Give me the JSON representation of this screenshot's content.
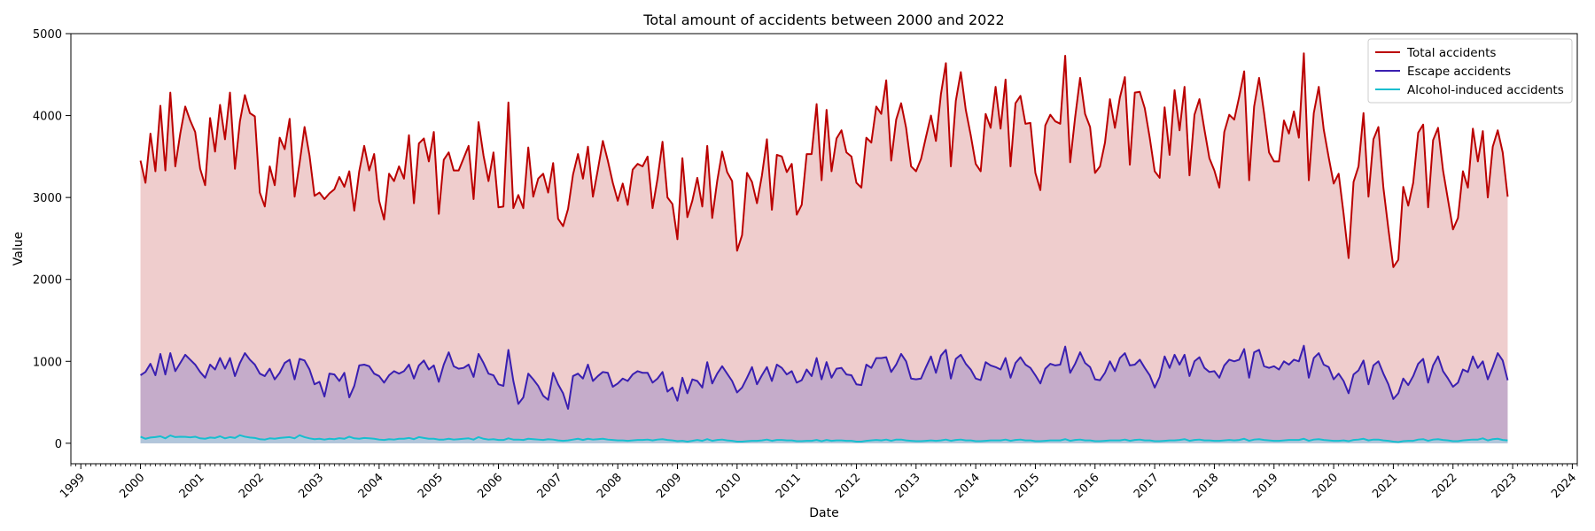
{
  "chart_data": {
    "type": "line",
    "title": "Total amount of accidents between 2000 and 2022",
    "xlabel": "Date",
    "ylabel": "Value",
    "xlim": [
      "1998-11",
      "2024-02"
    ],
    "ylim": [
      -250,
      5000
    ],
    "y_ticks": [
      0,
      1000,
      2000,
      3000,
      4000,
      5000
    ],
    "x_ticks": [
      "1999",
      "2000",
      "2001",
      "2002",
      "2003",
      "2004",
      "2005",
      "2006",
      "2007",
      "2008",
      "2009",
      "2010",
      "2011",
      "2012",
      "2013",
      "2014",
      "2015",
      "2016",
      "2017",
      "2018",
      "2019",
      "2020",
      "2021",
      "2022",
      "2023",
      "2024"
    ],
    "x_tick_rotation_deg": 45,
    "grid": false,
    "legend_position": "top-right",
    "x_start": "2000-01",
    "x_step": "month",
    "series": [
      {
        "name": "Total accidents",
        "color": "#bb0000",
        "fill": "#e8b8b8",
        "values": [
          3450,
          3180,
          3780,
          3320,
          4120,
          3330,
          4280,
          3380,
          3780,
          4110,
          3940,
          3800,
          3350,
          3150,
          3970,
          3560,
          4130,
          3710,
          4280,
          3350,
          3930,
          4250,
          4030,
          3990,
          3060,
          2890,
          3380,
          3150,
          3730,
          3590,
          3960,
          3010,
          3420,
          3860,
          3510,
          3020,
          3060,
          2980,
          3050,
          3100,
          3250,
          3130,
          3320,
          2840,
          3320,
          3630,
          3330,
          3530,
          2960,
          2730,
          3290,
          3200,
          3380,
          3230,
          3760,
          2930,
          3660,
          3720,
          3440,
          3800,
          2800,
          3460,
          3550,
          3330,
          3330,
          3480,
          3630,
          2980,
          3920,
          3510,
          3200,
          3550,
          2880,
          2890,
          4160,
          2870,
          3030,
          2870,
          3610,
          3010,
          3230,
          3290,
          3060,
          3420,
          2740,
          2650,
          2860,
          3280,
          3530,
          3230,
          3620,
          3010,
          3340,
          3690,
          3450,
          3180,
          2960,
          3170,
          2910,
          3340,
          3410,
          3380,
          3500,
          2870,
          3230,
          3680,
          3000,
          2920,
          2490,
          3480,
          2760,
          2960,
          3240,
          2890,
          3630,
          2750,
          3200,
          3560,
          3310,
          3200,
          2350,
          2540,
          3300,
          3190,
          2930,
          3270,
          3710,
          2850,
          3520,
          3500,
          3310,
          3410,
          2790,
          2910,
          3530,
          3530,
          4140,
          3210,
          4070,
          3320,
          3720,
          3820,
          3550,
          3500,
          3180,
          3120,
          3730,
          3670,
          4110,
          4020,
          4430,
          3450,
          3950,
          4150,
          3850,
          3380,
          3320,
          3470,
          3740,
          4000,
          3690,
          4260,
          4640,
          3380,
          4180,
          4530,
          4070,
          3760,
          3410,
          3320,
          4020,
          3850,
          4350,
          3840,
          4440,
          3380,
          4150,
          4240,
          3900,
          3910,
          3300,
          3090,
          3880,
          4010,
          3930,
          3900,
          4730,
          3430,
          3980,
          4460,
          4020,
          3860,
          3300,
          3380,
          3670,
          4200,
          3850,
          4220,
          4470,
          3400,
          4280,
          4290,
          4090,
          3730,
          3320,
          3240,
          4100,
          3520,
          4310,
          3820,
          4350,
          3270,
          4010,
          4200,
          3830,
          3480,
          3330,
          3120,
          3800,
          4010,
          3950,
          4230,
          4540,
          3210,
          4110,
          4460,
          4030,
          3550,
          3440,
          3440,
          3940,
          3780,
          4050,
          3730,
          4760,
          3210,
          4030,
          4350,
          3830,
          3490,
          3170,
          3290,
          2800,
          2260,
          3190,
          3380,
          4030,
          3010,
          3710,
          3860,
          3120,
          2620,
          2150,
          2240,
          3130,
          2900,
          3180,
          3790,
          3890,
          2880,
          3700,
          3850,
          3330,
          2970,
          2610,
          2750,
          3320,
          3120,
          3840,
          3440,
          3810,
          3000,
          3620,
          3820,
          3550,
          3010
        ]
      },
      {
        "name": "Escape accidents",
        "color": "#3a1fb0",
        "fill": "#b7a0c8",
        "values": [
          830,
          870,
          970,
          830,
          1090,
          840,
          1100,
          880,
          980,
          1080,
          1020,
          960,
          870,
          800,
          960,
          900,
          1040,
          910,
          1040,
          820,
          980,
          1100,
          1020,
          960,
          850,
          820,
          910,
          780,
          860,
          980,
          1020,
          780,
          1030,
          1010,
          900,
          720,
          750,
          570,
          850,
          840,
          760,
          860,
          560,
          700,
          950,
          960,
          940,
          850,
          820,
          740,
          830,
          880,
          850,
          880,
          960,
          790,
          950,
          1010,
          900,
          950,
          750,
          960,
          1110,
          940,
          910,
          920,
          960,
          810,
          1090,
          980,
          850,
          830,
          720,
          700,
          1140,
          760,
          480,
          560,
          850,
          780,
          700,
          580,
          530,
          860,
          720,
          610,
          420,
          820,
          850,
          790,
          960,
          760,
          820,
          870,
          860,
          690,
          730,
          790,
          760,
          840,
          880,
          860,
          860,
          740,
          790,
          870,
          630,
          680,
          520,
          800,
          610,
          780,
          760,
          680,
          990,
          730,
          850,
          940,
          850,
          760,
          620,
          680,
          800,
          930,
          720,
          830,
          930,
          760,
          960,
          920,
          840,
          880,
          740,
          770,
          900,
          820,
          1040,
          780,
          990,
          800,
          910,
          920,
          840,
          830,
          720,
          710,
          960,
          920,
          1040,
          1040,
          1050,
          870,
          960,
          1090,
          1000,
          790,
          780,
          790,
          930,
          1060,
          860,
          1070,
          1140,
          790,
          1030,
          1080,
          970,
          900,
          790,
          770,
          990,
          950,
          930,
          900,
          1040,
          800,
          980,
          1050,
          960,
          920,
          830,
          730,
          910,
          970,
          950,
          960,
          1180,
          860,
          970,
          1110,
          980,
          930,
          780,
          770,
          860,
          1000,
          880,
          1040,
          1100,
          950,
          960,
          1020,
          920,
          830,
          680,
          810,
          1060,
          920,
          1080,
          960,
          1080,
          820,
          1000,
          1050,
          920,
          870,
          880,
          800,
          950,
          1020,
          1000,
          1020,
          1150,
          800,
          1110,
          1140,
          940,
          920,
          940,
          900,
          1000,
          960,
          1020,
          1000,
          1190,
          800,
          1040,
          1100,
          960,
          930,
          780,
          850,
          760,
          610,
          840,
          890,
          1010,
          720,
          950,
          1000,
          850,
          720,
          540,
          610,
          790,
          710,
          820,
          970,
          1030,
          740,
          950,
          1060,
          880,
          790,
          690,
          740,
          900,
          870,
          1060,
          920,
          1000,
          780,
          930,
          1100,
          1010,
          770
        ]
      },
      {
        "name": "Alcohol-induced accidents",
        "color": "#17becf",
        "fill": "#aacfe0",
        "values": [
          80,
          55,
          70,
          75,
          85,
          60,
          95,
          75,
          80,
          78,
          72,
          80,
          60,
          55,
          70,
          65,
          85,
          60,
          75,
          65,
          98,
          80,
          70,
          65,
          50,
          45,
          60,
          55,
          65,
          70,
          75,
          60,
          98,
          75,
          60,
          50,
          55,
          45,
          55,
          50,
          62,
          55,
          80,
          60,
          55,
          65,
          60,
          55,
          45,
          40,
          50,
          45,
          55,
          55,
          65,
          50,
          75,
          65,
          55,
          55,
          45,
          45,
          55,
          45,
          50,
          55,
          60,
          45,
          75,
          55,
          45,
          50,
          40,
          40,
          60,
          45,
          45,
          40,
          55,
          50,
          45,
          40,
          50,
          45,
          35,
          30,
          35,
          45,
          55,
          40,
          55,
          45,
          50,
          55,
          45,
          40,
          35,
          35,
          30,
          35,
          40,
          40,
          45,
          35,
          45,
          50,
          40,
          35,
          25,
          30,
          20,
          30,
          40,
          30,
          50,
          30,
          40,
          45,
          35,
          30,
          20,
          20,
          25,
          30,
          30,
          35,
          45,
          30,
          40,
          40,
          35,
          35,
          25,
          25,
          30,
          30,
          40,
          25,
          40,
          30,
          35,
          35,
          30,
          30,
          20,
          20,
          30,
          35,
          40,
          35,
          45,
          30,
          45,
          45,
          35,
          30,
          25,
          25,
          30,
          35,
          30,
          35,
          45,
          30,
          40,
          45,
          35,
          35,
          25,
          25,
          30,
          35,
          35,
          35,
          45,
          30,
          40,
          45,
          35,
          35,
          25,
          25,
          30,
          35,
          35,
          35,
          50,
          30,
          40,
          45,
          35,
          35,
          25,
          25,
          30,
          35,
          35,
          35,
          45,
          30,
          40,
          45,
          35,
          35,
          25,
          25,
          30,
          35,
          35,
          40,
          50,
          30,
          40,
          45,
          35,
          35,
          30,
          30,
          35,
          40,
          35,
          40,
          55,
          30,
          45,
          50,
          40,
          35,
          30,
          30,
          35,
          40,
          40,
          40,
          55,
          30,
          45,
          50,
          40,
          35,
          30,
          30,
          35,
          25,
          40,
          45,
          55,
          35,
          45,
          45,
          35,
          30,
          20,
          15,
          25,
          30,
          30,
          45,
          50,
          30,
          45,
          50,
          40,
          35,
          25,
          25,
          35,
          40,
          45,
          45,
          60,
          35,
          50,
          55,
          40,
          35
        ]
      }
    ]
  }
}
